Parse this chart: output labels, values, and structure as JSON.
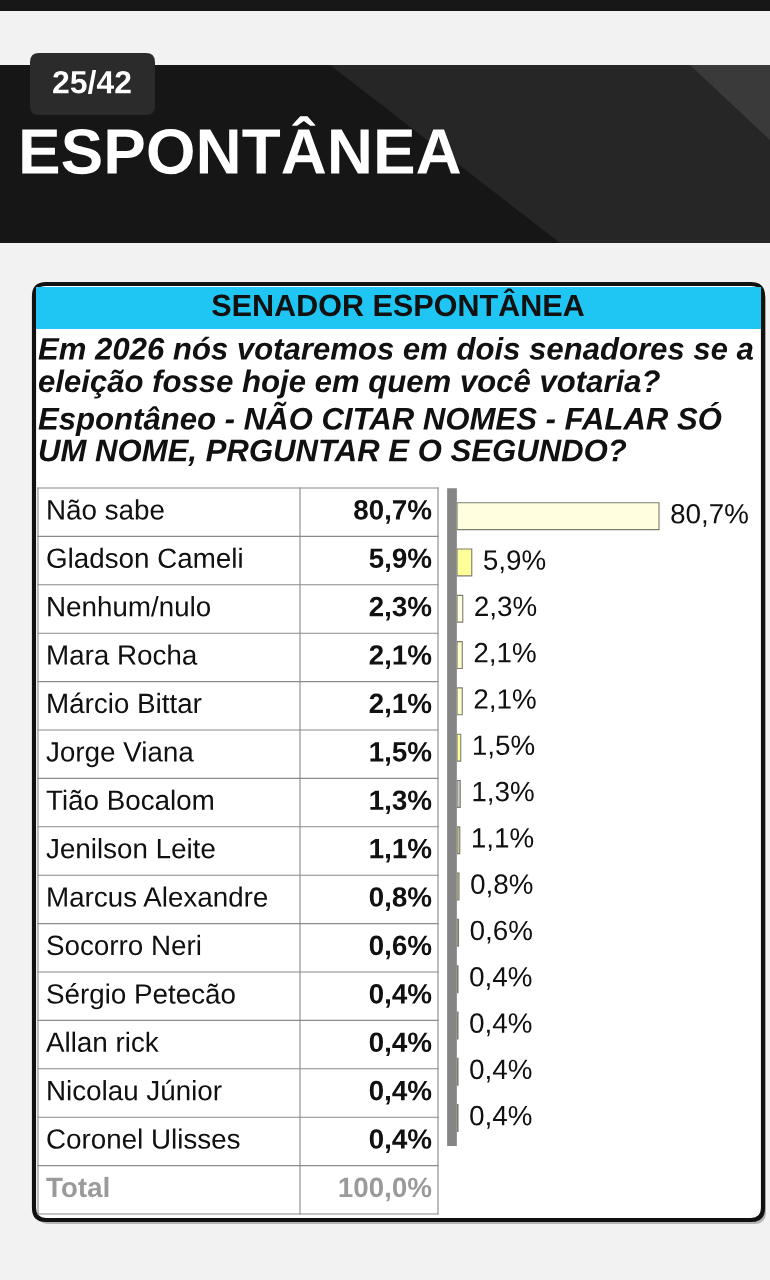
{
  "chart_data": {
    "type": "bar",
    "orientation": "horizontal",
    "title": "SENADOR ESPONTÂNEA",
    "subtitle": "Em 2026 nós votaremos em dois senadores se a eleição fosse hoje em quem você votaria? Espontâneo - NÃO CITAR NOMES - FALAR SÓ UM NOME, PRGUNTAR E O SEGUNDO?",
    "categories": [
      "Não sabe",
      "Gladson Cameli",
      "Nenhum/nulo",
      "Mara Rocha",
      "Márcio Bittar",
      "Jorge Viana",
      "Tião Bocalom",
      "Jenilson Leite",
      "Marcus Alexandre",
      "Socorro Neri",
      "Sérgio Petecão",
      "Allan rick",
      "Nicolau Júnior",
      "Coronel Ulisses"
    ],
    "values": [
      80.7,
      5.9,
      2.3,
      2.1,
      2.1,
      1.5,
      1.3,
      1.1,
      0.8,
      0.6,
      0.4,
      0.4,
      0.4,
      0.4
    ],
    "value_labels": [
      "80,7%",
      "5,9%",
      "2,3%",
      "2,1%",
      "2,1%",
      "1,5%",
      "1,3%",
      "1,1%",
      "0,8%",
      "0,6%",
      "0,4%",
      "0,4%",
      "0,4%",
      "0,4%"
    ],
    "colors": [
      "#ffffe0",
      "#ffff99",
      "#ffffe0",
      "#ffffcc",
      "#ffffcc",
      "#ffff99",
      "#c8c8c8",
      "#c8c08a",
      "#c8c08a",
      "#c8c08a",
      "#c8c08a",
      "#c8c08a",
      "#c8c08a",
      "#c8c08a"
    ],
    "tick_labels": "y",
    "annotations": [
      "25/42",
      "ESPONTÂNEA",
      "Total",
      "100,0%"
    ]
  }
}
